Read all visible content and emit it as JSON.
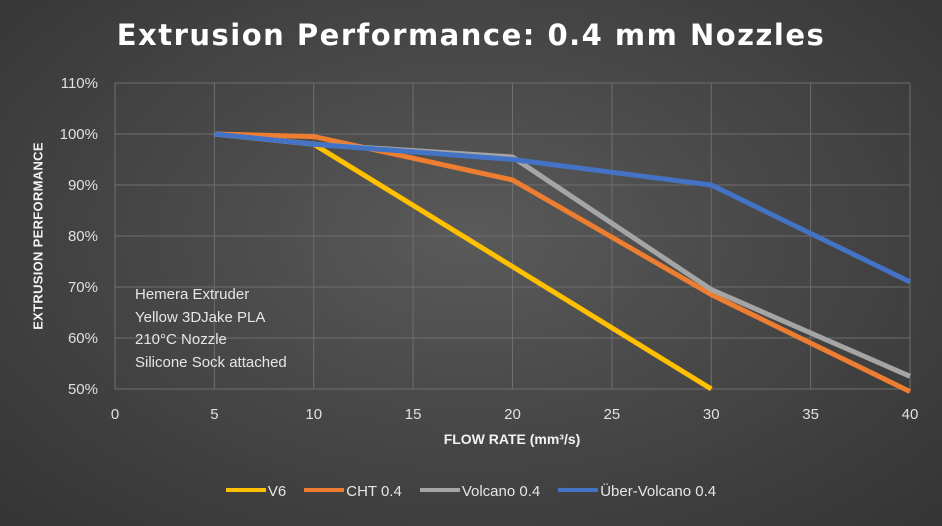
{
  "chart_data": {
    "type": "line",
    "title": "Extrusion Performance: 0.4 mm Nozzles",
    "xlabel": "FLOW RATE (mm³/s)",
    "ylabel": "EXTRUSION PERFORMANCE",
    "xlim": [
      0,
      40
    ],
    "ylim": [
      50,
      110
    ],
    "xticks": [
      0,
      5,
      10,
      15,
      20,
      25,
      30,
      35,
      40
    ],
    "xtick_labels": [
      "0",
      "5",
      "10",
      "15",
      "20",
      "25",
      "30",
      "35",
      "40"
    ],
    "yticks": [
      50,
      60,
      70,
      80,
      90,
      100,
      110
    ],
    "ytick_labels": [
      "50%",
      "60%",
      "70%",
      "80%",
      "90%",
      "100%",
      "110%"
    ],
    "grid": true,
    "legend_position": "bottom",
    "annotation": [
      "Hemera Extruder",
      "Yellow 3DJake PLA",
      "210°C Nozzle",
      "Silicone Sock attached"
    ],
    "series": [
      {
        "name": "V6",
        "color": "#ffc000",
        "x": [
          5,
          10,
          30
        ],
        "y": [
          100,
          98,
          50
        ]
      },
      {
        "name": "CHT 0.4",
        "color": "#ed7d31",
        "x": [
          5,
          10,
          20,
          30,
          40
        ],
        "y": [
          100,
          99.5,
          91,
          68.5,
          49.5
        ]
      },
      {
        "name": "Volcano 0.4",
        "color": "#a5a5a5",
        "x": [
          5,
          10,
          20,
          30,
          40
        ],
        "y": [
          100,
          98,
          95.5,
          69.5,
          52.5
        ]
      },
      {
        "name": "Über-Volcano 0.4",
        "color": "#4472c4",
        "x": [
          5,
          10,
          20,
          30,
          40
        ],
        "y": [
          100,
          98,
          95,
          90,
          71
        ]
      }
    ]
  }
}
